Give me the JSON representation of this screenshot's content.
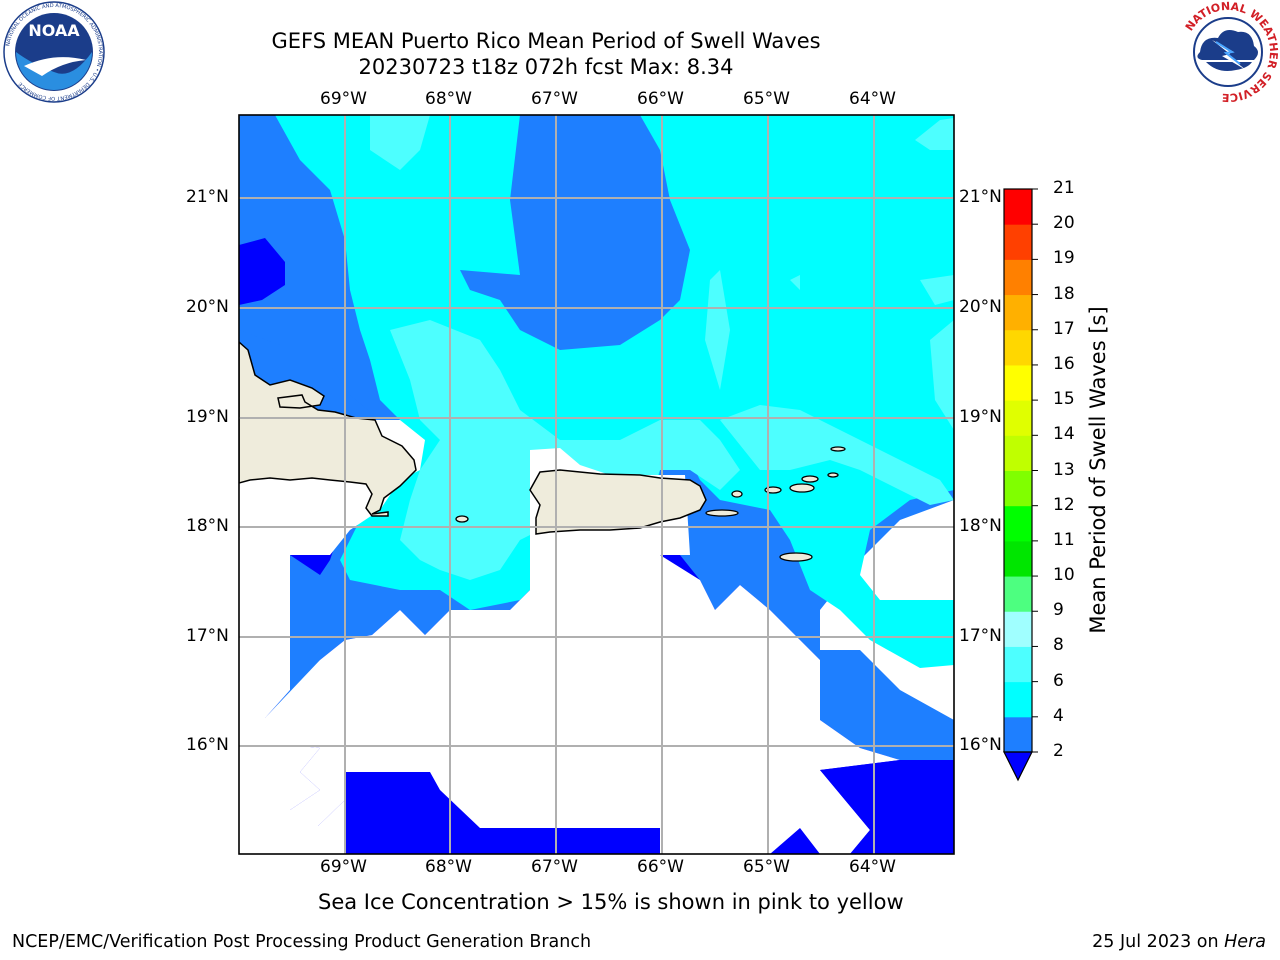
{
  "header": {
    "title_line1": "GEFS MEAN Puerto Rico Mean Period of Swell Waves",
    "title_line2": "20230723 t18z 072h fcst   Max: 8.34"
  },
  "logos": {
    "noaa": {
      "text": "NOAA",
      "ring_text": "NATIONAL OCEANIC AND ATMOSPHERIC ADMINISTRATION • U.S. DEPARTMENT OF COMMERCE"
    },
    "nws": {
      "ring_text": "NATIONAL WEATHER SERVICE"
    }
  },
  "map": {
    "lon_labels": [
      "69°W",
      "68°W",
      "67°W",
      "66°W",
      "65°W",
      "64°W"
    ],
    "lat_labels": [
      "21°N",
      "20°N",
      "19°N",
      "18°N",
      "17°N",
      "16°N"
    ],
    "lon_range": [
      -70,
      -63.3
    ],
    "lat_range": [
      15,
      21.75
    ]
  },
  "colorbar": {
    "title": "Mean Period of Swell Waves [s]",
    "levels": [
      "2",
      "4",
      "6",
      "8",
      "9",
      "10",
      "11",
      "12",
      "13",
      "14",
      "15",
      "16",
      "17",
      "18",
      "19",
      "20",
      "21"
    ],
    "colors": [
      "#0000ff",
      "#1e7fff",
      "#00ffff",
      "#4dffff",
      "#a0ffff",
      "#4dff80",
      "#00e600",
      "#00ff00",
      "#80ff00",
      "#c0ff00",
      "#e0ff00",
      "#ffff00",
      "#ffd700",
      "#ffb000",
      "#ff8000",
      "#ff4000",
      "#ff0000"
    ]
  },
  "caption": "Sea Ice Concentration > 15% is shown in pink to yellow",
  "footer": {
    "left": "NCEP/EMC/Verification Post Processing Product Generation Branch",
    "right_date": "25 Jul 2023 on ",
    "right_host": "Hera"
  }
}
